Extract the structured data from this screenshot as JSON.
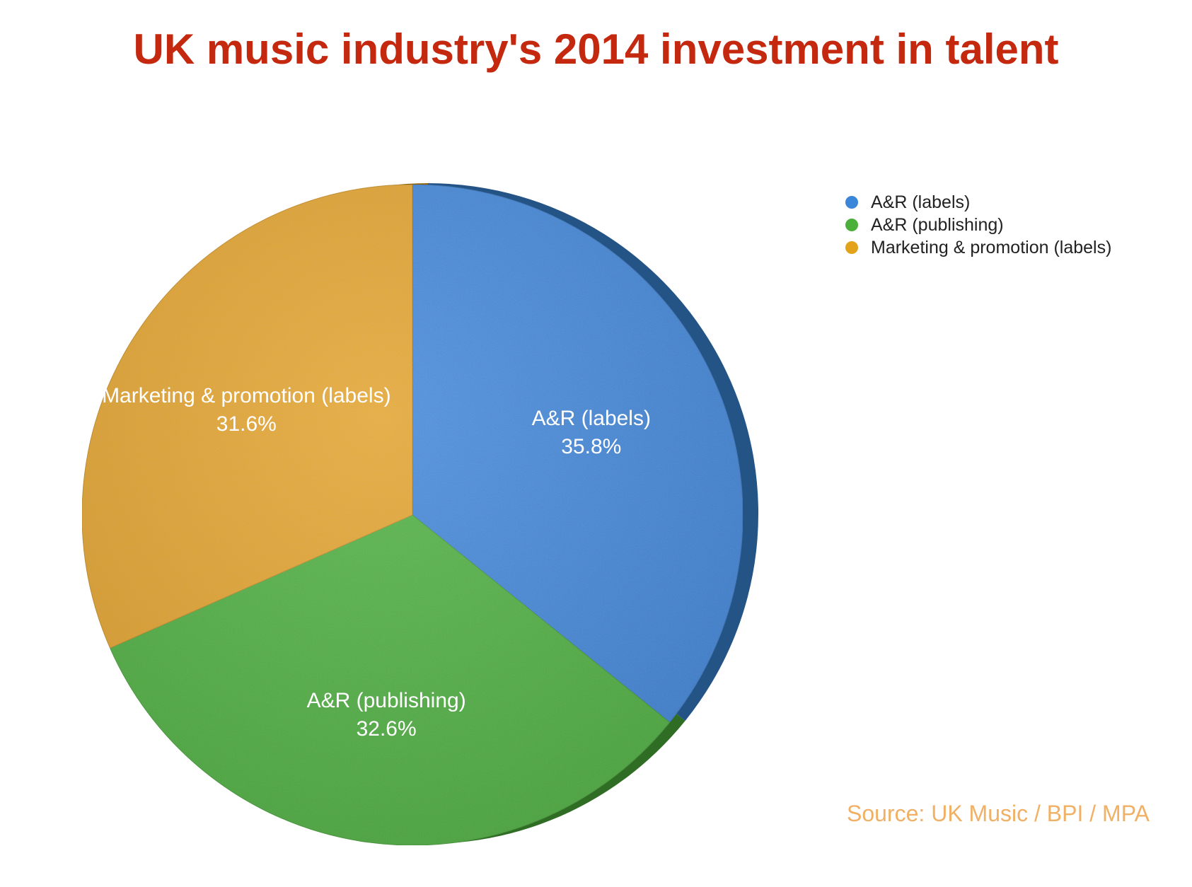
{
  "chart_data": {
    "type": "pie",
    "title": "UK music industry's 2014 investment in talent",
    "categories": [
      "A&R (labels)",
      "A&R (publishing)",
      "Marketing & promotion (labels)"
    ],
    "values": [
      35.8,
      32.6,
      31.6
    ],
    "value_labels": [
      "35.8%",
      "32.6%",
      "31.6%"
    ],
    "colors": [
      "#3a86d8",
      "#4bb03a",
      "#e2a31a"
    ],
    "start_angle": "12 o'clock",
    "direction": "clockwise",
    "legend_position": "top-right",
    "source": "Source: UK Music / BPI / MPA"
  }
}
